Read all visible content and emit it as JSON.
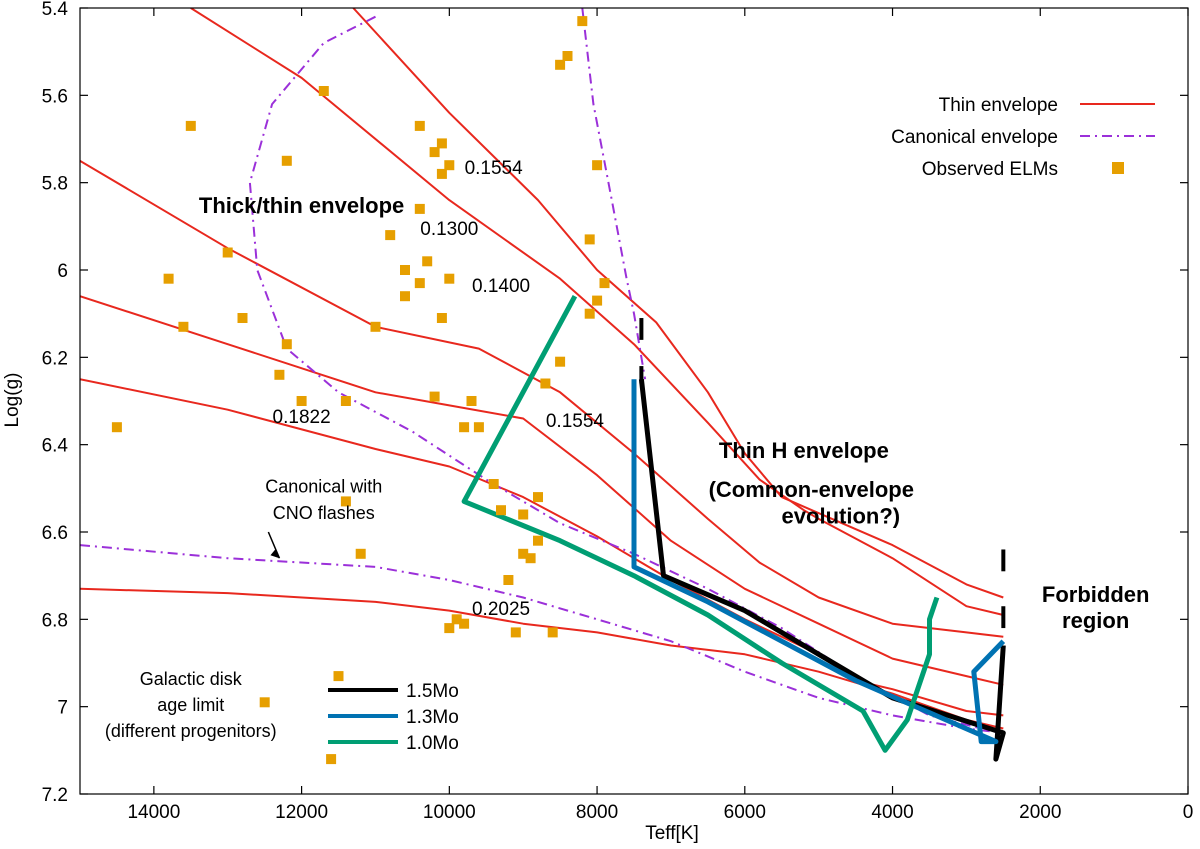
{
  "chart_data": {
    "type": "line",
    "xlabel": "Teff[K]",
    "ylabel": "Log(g)",
    "xlim": [
      15000,
      0
    ],
    "ylim": [
      5.4,
      7.2
    ],
    "x_ticks": [
      14000,
      12000,
      10000,
      8000,
      6000,
      4000,
      2000,
      0
    ],
    "y_ticks": [
      5.4,
      5.6,
      5.8,
      6,
      6.2,
      6.4,
      6.6,
      6.8,
      7,
      7.2
    ],
    "grid": false,
    "legend_placement": "top-right",
    "colors": {
      "thin": "#e8281e",
      "canonical": "#9b30d9",
      "observed": "#e69f00",
      "m15": "#000000",
      "m13": "#0072b2",
      "m10": "#009e73"
    },
    "legend": [
      {
        "label": "Thin envelope",
        "style": "line",
        "color": "#e8281e"
      },
      {
        "label": "Canonical envelope",
        "style": "dashdot",
        "color": "#9b30d9"
      },
      {
        "label": "Observed ELMs",
        "style": "square",
        "color": "#e69f00"
      }
    ],
    "legend2": [
      {
        "label": "1.5Mo",
        "color": "#000000"
      },
      {
        "label": "1.3Mo",
        "color": "#0072b2"
      },
      {
        "label": "1.0Mo",
        "color": "#009e73"
      }
    ],
    "series": [
      {
        "group": "thin",
        "mass_label": "0.1554",
        "points": [
          [
            11300,
            5.4
          ],
          [
            10000,
            5.64
          ],
          [
            8800,
            5.84
          ],
          [
            8000,
            6.0
          ],
          [
            7200,
            6.12
          ],
          [
            6500,
            6.28
          ],
          [
            6000,
            6.42
          ],
          [
            5500,
            6.52
          ],
          [
            4000,
            6.63
          ],
          [
            3000,
            6.72
          ],
          [
            2500,
            6.75
          ]
        ]
      },
      {
        "group": "thin",
        "mass_label": "0.1300",
        "points": [
          [
            13500,
            5.4
          ],
          [
            12000,
            5.56
          ],
          [
            10000,
            5.84
          ],
          [
            8500,
            6.02
          ],
          [
            7500,
            6.17
          ],
          [
            6500,
            6.35
          ],
          [
            5800,
            6.48
          ],
          [
            5200,
            6.55
          ],
          [
            5000,
            6.57
          ],
          [
            4000,
            6.66
          ],
          [
            3000,
            6.77
          ],
          [
            2500,
            6.79
          ]
        ]
      },
      {
        "group": "thin",
        "mass_label": "0.1400",
        "points": [
          [
            15000,
            5.75
          ],
          [
            13000,
            5.95
          ],
          [
            11000,
            6.13
          ],
          [
            9600,
            6.18
          ],
          [
            8500,
            6.28
          ],
          [
            7500,
            6.42
          ],
          [
            6500,
            6.57
          ],
          [
            5800,
            6.67
          ],
          [
            5000,
            6.75
          ],
          [
            4000,
            6.81
          ],
          [
            3000,
            6.83
          ],
          [
            2500,
            6.84
          ]
        ]
      },
      {
        "group": "thin",
        "mass_label": "0.1554",
        "points": [
          [
            15000,
            6.06
          ],
          [
            13000,
            6.17
          ],
          [
            11000,
            6.28
          ],
          [
            10000,
            6.31
          ],
          [
            9000,
            6.34
          ],
          [
            8000,
            6.47
          ],
          [
            7000,
            6.62
          ],
          [
            6000,
            6.73
          ],
          [
            5000,
            6.81
          ],
          [
            4000,
            6.89
          ],
          [
            3000,
            6.93
          ],
          [
            2500,
            6.95
          ]
        ]
      },
      {
        "group": "thin",
        "mass_label": "0.1822",
        "points": [
          [
            15000,
            6.25
          ],
          [
            13000,
            6.32
          ],
          [
            11000,
            6.41
          ],
          [
            10000,
            6.45
          ],
          [
            9000,
            6.52
          ],
          [
            8000,
            6.61
          ],
          [
            7000,
            6.71
          ],
          [
            6000,
            6.8
          ],
          [
            5000,
            6.88
          ],
          [
            4500,
            6.94
          ],
          [
            4000,
            6.96
          ],
          [
            3000,
            7.01
          ],
          [
            2500,
            7.02
          ]
        ]
      },
      {
        "group": "thin",
        "mass_label": "0.2025",
        "points": [
          [
            15000,
            6.73
          ],
          [
            13000,
            6.74
          ],
          [
            11000,
            6.76
          ],
          [
            10000,
            6.78
          ],
          [
            9000,
            6.81
          ],
          [
            8000,
            6.83
          ],
          [
            7000,
            6.86
          ],
          [
            6000,
            6.88
          ],
          [
            5000,
            6.92
          ],
          [
            4000,
            6.97
          ],
          [
            3000,
            7.03
          ],
          [
            2500,
            7.05
          ]
        ]
      },
      {
        "group": "canonical",
        "points": [
          [
            8200,
            5.4
          ],
          [
            8050,
            5.62
          ],
          [
            7800,
            5.84
          ],
          [
            7600,
            6.02
          ],
          [
            7500,
            6.1
          ],
          [
            7350,
            6.25
          ]
        ]
      },
      {
        "group": "canonical",
        "points": [
          [
            11000,
            5.42
          ],
          [
            11700,
            5.48
          ],
          [
            12400,
            5.62
          ],
          [
            12700,
            5.8
          ],
          [
            12600,
            6.0
          ],
          [
            12200,
            6.18
          ],
          [
            11500,
            6.28
          ],
          [
            10500,
            6.37
          ],
          [
            9500,
            6.48
          ],
          [
            8500,
            6.58
          ],
          [
            7500,
            6.65
          ],
          [
            6500,
            6.73
          ],
          [
            5500,
            6.82
          ],
          [
            4500,
            6.93
          ],
          [
            3500,
            7.02
          ],
          [
            2800,
            7.05
          ]
        ]
      },
      {
        "group": "canonical",
        "points": [
          [
            15000,
            6.63
          ],
          [
            13000,
            6.66
          ],
          [
            11000,
            6.68
          ],
          [
            10000,
            6.71
          ],
          [
            9000,
            6.75
          ],
          [
            8000,
            6.8
          ],
          [
            7000,
            6.85
          ],
          [
            6000,
            6.92
          ],
          [
            5000,
            6.98
          ],
          [
            4000,
            7.02
          ],
          [
            3000,
            7.05
          ],
          [
            2500,
            7.06
          ]
        ]
      },
      {
        "group": "m15",
        "points": [
          [
            7400,
            6.25
          ],
          [
            7100,
            6.7
          ],
          [
            6000,
            6.78
          ],
          [
            5000,
            6.88
          ],
          [
            4000,
            6.98
          ],
          [
            2500,
            7.06
          ],
          [
            2600,
            7.12
          ],
          [
            2500,
            6.86
          ]
        ]
      },
      {
        "group": "m13",
        "points": [
          [
            7500,
            6.25
          ],
          [
            7500,
            6.68
          ],
          [
            6500,
            6.76
          ],
          [
            5500,
            6.85
          ],
          [
            4500,
            6.94
          ],
          [
            2600,
            7.08
          ],
          [
            2800,
            7.08
          ],
          [
            2900,
            6.92
          ],
          [
            2500,
            6.85
          ]
        ]
      },
      {
        "group": "m10",
        "points": [
          [
            8300,
            6.06
          ],
          [
            9800,
            6.53
          ],
          [
            8500,
            6.62
          ],
          [
            7500,
            6.7
          ],
          [
            6500,
            6.79
          ],
          [
            5500,
            6.9
          ],
          [
            4400,
            7.01
          ],
          [
            4100,
            7.1
          ],
          [
            3800,
            7.03
          ],
          [
            3500,
            6.88
          ],
          [
            3500,
            6.8
          ],
          [
            3400,
            6.75
          ]
        ]
      }
    ],
    "observed": [
      [
        8200,
        5.43
      ],
      [
        8400,
        5.51
      ],
      [
        8500,
        5.53
      ],
      [
        11700,
        5.59
      ],
      [
        13500,
        5.67
      ],
      [
        10400,
        5.67
      ],
      [
        10100,
        5.71
      ],
      [
        10200,
        5.73
      ],
      [
        10000,
        5.76
      ],
      [
        12200,
        5.75
      ],
      [
        8000,
        5.76
      ],
      [
        10100,
        5.78
      ],
      [
        10400,
        5.86
      ],
      [
        10800,
        5.92
      ],
      [
        8100,
        5.93
      ],
      [
        13000,
        5.96
      ],
      [
        10300,
        5.98
      ],
      [
        10600,
        6.0
      ],
      [
        13800,
        6.02
      ],
      [
        10400,
        6.03
      ],
      [
        10000,
        6.02
      ],
      [
        7900,
        6.03
      ],
      [
        10600,
        6.06
      ],
      [
        8000,
        6.07
      ],
      [
        12800,
        6.11
      ],
      [
        10100,
        6.11
      ],
      [
        8100,
        6.1
      ],
      [
        13600,
        6.13
      ],
      [
        11000,
        6.13
      ],
      [
        12200,
        6.17
      ],
      [
        8500,
        6.21
      ],
      [
        12300,
        6.24
      ],
      [
        8700,
        6.26
      ],
      [
        10200,
        6.29
      ],
      [
        12000,
        6.3
      ],
      [
        11400,
        6.3
      ],
      [
        9700,
        6.3
      ],
      [
        14500,
        6.36
      ],
      [
        9800,
        6.36
      ],
      [
        9600,
        6.36
      ],
      [
        9400,
        6.49
      ],
      [
        8800,
        6.52
      ],
      [
        11400,
        6.53
      ],
      [
        9300,
        6.55
      ],
      [
        9000,
        6.56
      ],
      [
        8800,
        6.62
      ],
      [
        11200,
        6.65
      ],
      [
        9000,
        6.65
      ],
      [
        8900,
        6.66
      ],
      [
        9200,
        6.71
      ],
      [
        9900,
        6.8
      ],
      [
        9800,
        6.81
      ],
      [
        10000,
        6.82
      ],
      [
        9100,
        6.83
      ],
      [
        8600,
        6.83
      ],
      [
        11500,
        6.93
      ],
      [
        12500,
        6.99
      ],
      [
        11600,
        7.12
      ]
    ],
    "curve_labels": [
      {
        "text": "0.1554",
        "x": 9400,
        "y": 5.78
      },
      {
        "text": "0.1300",
        "x": 10000,
        "y": 5.92
      },
      {
        "text": "0.1400",
        "x": 9300,
        "y": 6.05
      },
      {
        "text": "0.1554",
        "x": 8300,
        "y": 6.36
      },
      {
        "text": "0.1822",
        "x": 12000,
        "y": 6.35
      },
      {
        "text": "0.2025",
        "x": 9300,
        "y": 6.79
      }
    ],
    "regions": [
      {
        "text": "Thick/thin envelope",
        "x": 12000,
        "y": 5.87
      },
      {
        "text": "Thin H envelope",
        "x": 5200,
        "y": 6.43
      },
      {
        "text": "(Common-envelope",
        "x": 5100,
        "y": 6.52
      },
      {
        "text": "evolution?)",
        "x": 4700,
        "y": 6.58
      },
      {
        "text": "Forbidden",
        "x": 1250,
        "y": 6.76
      },
      {
        "text": "region",
        "x": 1250,
        "y": 6.82
      }
    ],
    "notes": [
      {
        "text": "Canonical with",
        "x": 11700,
        "y": 6.51
      },
      {
        "text": "CNO flashes",
        "x": 11700,
        "y": 6.57
      },
      {
        "text": "Galactic disk",
        "x": 13500,
        "y": 6.95
      },
      {
        "text": "age limit",
        "x": 13500,
        "y": 7.01
      },
      {
        "text": "(different progenitors)",
        "x": 13500,
        "y": 7.07
      }
    ]
  }
}
